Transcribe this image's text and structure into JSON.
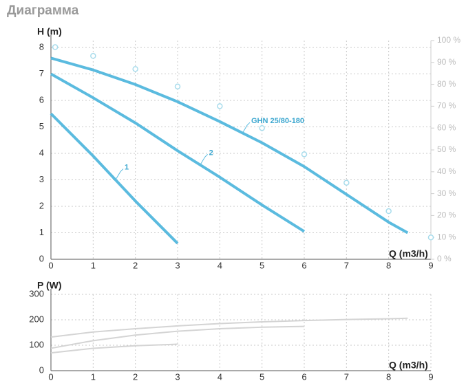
{
  "title": "Диаграмма",
  "chart_data": [
    {
      "type": "line",
      "ylabel": "H (m)",
      "xlabel": "Q (m3/h)",
      "xlim": [
        0,
        9
      ],
      "xticks": [
        0,
        1,
        2,
        3,
        4,
        5,
        6,
        7,
        8,
        9
      ],
      "ylim": [
        0,
        8.26
      ],
      "yticks": [
        0,
        1,
        2,
        3,
        4,
        5,
        6,
        7,
        8
      ],
      "y2lim": [
        0,
        100
      ],
      "y2ticks": [
        {
          "value": 0,
          "label": "0 %"
        },
        {
          "value": 10,
          "label": "10 %"
        },
        {
          "value": 20,
          "label": "20 %"
        },
        {
          "value": 30,
          "label": "30 %"
        },
        {
          "value": 40,
          "label": "40 %"
        },
        {
          "value": 50,
          "label": "50 %"
        },
        {
          "value": 60,
          "label": "60 %"
        },
        {
          "value": 70,
          "label": "70 %"
        },
        {
          "value": 80,
          "label": "80 %"
        },
        {
          "value": 90,
          "label": "90 %"
        },
        {
          "value": 100,
          "label": "100 %"
        }
      ],
      "grid": true,
      "series": [
        {
          "name": "1",
          "color": "#5bbbdf",
          "x": [
            0,
            1,
            2,
            3
          ],
          "values": [
            5.5,
            3.9,
            2.2,
            0.6
          ]
        },
        {
          "name": "2",
          "color": "#5bbbdf",
          "x": [
            0,
            1,
            2,
            3,
            4,
            5,
            6
          ],
          "values": [
            7.0,
            6.1,
            5.15,
            4.1,
            3.1,
            2.05,
            1.05
          ]
        },
        {
          "name": "GHN 25/80-180",
          "color": "#5bbbdf",
          "x": [
            0,
            1,
            2,
            3,
            4,
            5,
            6,
            7,
            8,
            8.45
          ],
          "values": [
            7.6,
            7.15,
            6.6,
            5.95,
            5.2,
            4.4,
            3.5,
            2.45,
            1.4,
            1.0
          ]
        },
        {
          "color": "#a8dcec",
          "axis": "y2",
          "x": [
            0.1,
            1,
            2,
            3,
            4,
            5,
            6,
            7,
            8,
            9
          ],
          "values": [
            97,
            93,
            87,
            79,
            70,
            60,
            48,
            35,
            22,
            10
          ]
        }
      ]
    },
    {
      "type": "line",
      "ylabel": "P (W)",
      "xlabel": "Q (m3/h)",
      "xlim": [
        0,
        9
      ],
      "xticks": [
        0,
        1,
        2,
        3,
        4,
        5,
        6,
        7,
        8,
        9
      ],
      "ylim": [
        0,
        300
      ],
      "yticks": [
        0,
        100,
        200,
        300
      ],
      "grid": true,
      "series": [
        {
          "color": "#d4d4d4",
          "x": [
            0,
            1,
            2,
            3
          ],
          "values": [
            70,
            88,
            98,
            104
          ]
        },
        {
          "color": "#d4d4d4",
          "x": [
            0,
            1,
            2,
            3,
            4,
            5,
            6
          ],
          "values": [
            88,
            118,
            140,
            155,
            165,
            171,
            174
          ]
        },
        {
          "color": "#d4d4d4",
          "x": [
            0,
            1,
            2,
            3,
            4,
            5,
            6,
            7,
            8,
            8.45
          ],
          "values": [
            132,
            152,
            165,
            176,
            185,
            192,
            197,
            201,
            204,
            206
          ]
        }
      ]
    }
  ]
}
